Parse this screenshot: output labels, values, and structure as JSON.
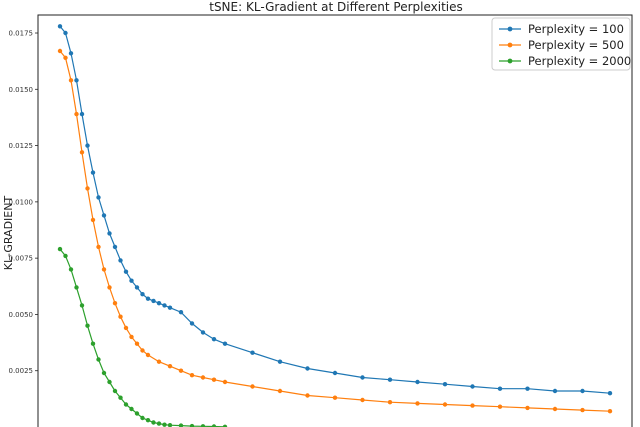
{
  "chart_data": {
    "type": "line",
    "title": "tSNE: KL-Gradient at Different Perplexities",
    "xlabel": "",
    "ylabel": "KL-GRADIENT",
    "ylim": [
      0,
      0.0183
    ],
    "xlim": [
      -4,
      104
    ],
    "yticks": [
      0.0025,
      0.005,
      0.0075,
      0.01,
      0.0125,
      0.015,
      0.0175
    ],
    "ytick_labels": [
      "0.0025",
      "0.0050",
      "0.0075",
      "0.0100",
      "0.0125",
      "0.0150",
      "0.0175"
    ],
    "grid": false,
    "legend_position": "top-right",
    "series": [
      {
        "name": "Perplexity = 100",
        "color": "#1f77b4",
        "x": [
          0,
          1,
          2,
          3,
          4,
          5,
          6,
          7,
          8,
          9,
          10,
          11,
          12,
          13,
          14,
          15,
          16,
          17,
          18,
          19,
          20,
          22,
          24,
          26,
          28,
          30,
          35,
          40,
          45,
          50,
          55,
          60,
          65,
          70,
          75,
          80,
          85,
          90,
          95,
          100
        ],
        "y": [
          0.0178,
          0.0175,
          0.0166,
          0.0154,
          0.0139,
          0.0125,
          0.0113,
          0.0102,
          0.0094,
          0.0086,
          0.008,
          0.0074,
          0.0069,
          0.0065,
          0.0062,
          0.0059,
          0.0057,
          0.0056,
          0.0055,
          0.0054,
          0.0053,
          0.0051,
          0.0046,
          0.0042,
          0.0039,
          0.0037,
          0.0033,
          0.0029,
          0.0026,
          0.0024,
          0.0022,
          0.0021,
          0.002,
          0.0019,
          0.0018,
          0.0017,
          0.0017,
          0.0016,
          0.0016,
          0.0015
        ]
      },
      {
        "name": "Perplexity = 500",
        "color": "#ff7f0e",
        "x": [
          0,
          1,
          2,
          3,
          4,
          5,
          6,
          7,
          8,
          9,
          10,
          11,
          12,
          13,
          14,
          15,
          16,
          18,
          20,
          22,
          24,
          26,
          28,
          30,
          35,
          40,
          45,
          50,
          55,
          60,
          65,
          70,
          75,
          80,
          85,
          90,
          95,
          100
        ],
        "y": [
          0.0167,
          0.0164,
          0.0154,
          0.0139,
          0.0122,
          0.0106,
          0.0092,
          0.008,
          0.007,
          0.0062,
          0.0055,
          0.0049,
          0.0044,
          0.004,
          0.0037,
          0.0034,
          0.0032,
          0.0029,
          0.0027,
          0.0025,
          0.0023,
          0.0022,
          0.0021,
          0.002,
          0.0018,
          0.0016,
          0.0014,
          0.0013,
          0.0012,
          0.0011,
          0.00105,
          0.001,
          0.00095,
          0.0009,
          0.00085,
          0.0008,
          0.00075,
          0.0007
        ]
      },
      {
        "name": "Perplexity = 2000",
        "color": "#2ca02c",
        "x": [
          0,
          1,
          2,
          3,
          4,
          5,
          6,
          7,
          8,
          9,
          10,
          11,
          12,
          13,
          14,
          15,
          16,
          17,
          18,
          19,
          20,
          22,
          24,
          26,
          28,
          30
        ],
        "y": [
          0.0079,
          0.0076,
          0.007,
          0.0062,
          0.0054,
          0.0045,
          0.0037,
          0.003,
          0.0024,
          0.002,
          0.0016,
          0.0013,
          0.001,
          0.0008,
          0.0006,
          0.0004,
          0.0003,
          0.0002,
          0.00015,
          0.0001,
          8e-05,
          6e-05,
          4e-05,
          3e-05,
          2e-05,
          1e-05
        ]
      }
    ]
  }
}
